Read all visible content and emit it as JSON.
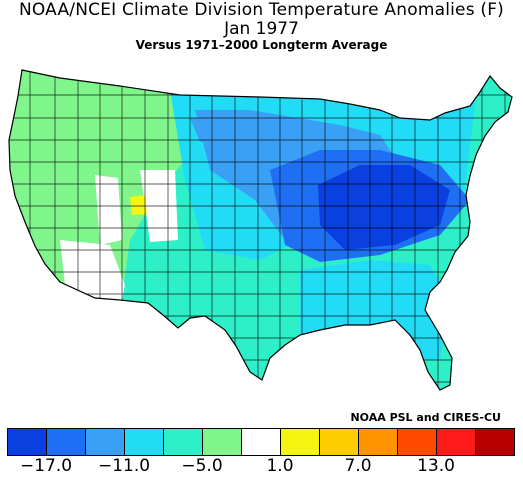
{
  "title": "NOAA/NCEI Climate Division Temperature Anomalies (F)",
  "period": "Jan 1977",
  "baseline": "Versus 1971–2000 Longterm Average",
  "credit": "NOAA PSL and CIRES-CU",
  "legend": {
    "colors": [
      "#0a3fe0",
      "#1f6ff5",
      "#3aa0f5",
      "#22dcf6",
      "#2ef0c8",
      "#7ff58c",
      "#ffffff",
      "#f5f512",
      "#ffcc00",
      "#ff9400",
      "#ff4a00",
      "#ff1a1a",
      "#b80000"
    ],
    "tick_labels": [
      "−17.0",
      "−11.0",
      "−5.0",
      "1.0",
      "7.0",
      "13.0"
    ]
  }
}
